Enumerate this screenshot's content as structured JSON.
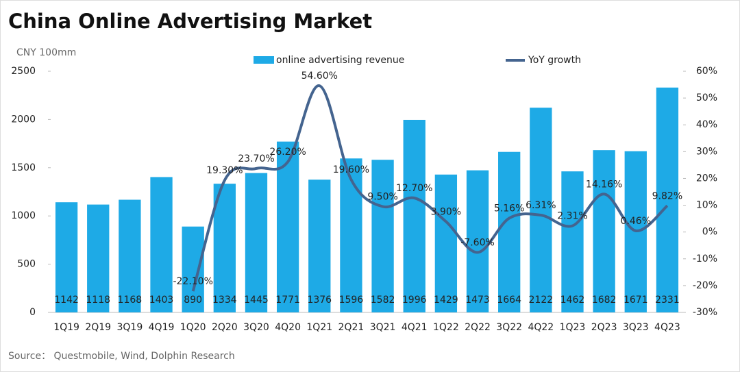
{
  "chart_data": {
    "type": "bar",
    "title": "China Online Advertising Market",
    "y_axis_label": "CNY 100mm",
    "source": "Source：  Questmobile, Wind, Dolphin Research",
    "categories": [
      "1Q19",
      "2Q19",
      "3Q19",
      "4Q19",
      "1Q20",
      "2Q20",
      "3Q20",
      "4Q20",
      "1Q21",
      "2Q21",
      "3Q21",
      "4Q21",
      "1Q22",
      "2Q22",
      "3Q22",
      "4Q22",
      "1Q23",
      "2Q23",
      "3Q23",
      "4Q23"
    ],
    "series": [
      {
        "name": "online advertising revenue",
        "type": "bar",
        "color": "#1eaae6",
        "values": [
          1142,
          1118,
          1168,
          1403,
          890,
          1334,
          1445,
          1771,
          1376,
          1596,
          1582,
          1996,
          1429,
          1473,
          1664,
          2122,
          1462,
          1682,
          1671,
          2331
        ]
      },
      {
        "name": "YoY growth",
        "type": "line",
        "color": "#44648f",
        "axis": "y2",
        "values": [
          null,
          null,
          null,
          null,
          -22.1,
          19.3,
          23.7,
          26.2,
          54.6,
          19.6,
          9.5,
          12.7,
          3.9,
          -7.6,
          5.16,
          6.31,
          2.31,
          14.16,
          0.46,
          9.82
        ],
        "value_labels": [
          null,
          null,
          null,
          null,
          "-22.10%",
          "19.30%",
          "23.70%",
          "26.20%",
          "54.60%",
          "19.60%",
          "9.50%",
          "12.70%",
          "3.90%",
          "-7.60%",
          "5.16%",
          "6.31%",
          "2.31%",
          "14.16%",
          "0.46%",
          "9.82%"
        ]
      }
    ],
    "ylim": [
      0,
      2500
    ],
    "yticks": [
      0,
      500,
      1000,
      1500,
      2000,
      2500
    ],
    "y2lim": [
      -30,
      60
    ],
    "y2ticks": [
      {
        "value": -30,
        "label": "-30%"
      },
      {
        "value": -20,
        "label": "-20%"
      },
      {
        "value": -10,
        "label": "-10%"
      },
      {
        "value": 0,
        "label": "0%"
      },
      {
        "value": 10,
        "label": "10%"
      },
      {
        "value": 20,
        "label": "20%"
      },
      {
        "value": 30,
        "label": "30%"
      },
      {
        "value": 40,
        "label": "40%"
      },
      {
        "value": 50,
        "label": "50%"
      },
      {
        "value": 60,
        "label": "60%"
      }
    ],
    "legend": "top"
  }
}
